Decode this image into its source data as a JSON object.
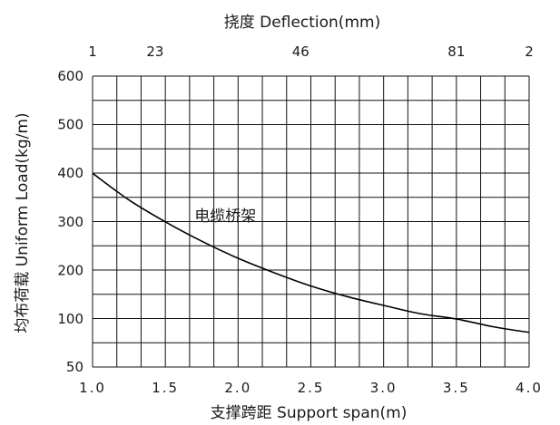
{
  "chart_data": {
    "type": "line",
    "title_top": "挠度 Deflection(mm)",
    "xlabel": "支撑跨距 Support span(m)",
    "ylabel": "均布荷载 Uniform Load(kg/m)",
    "x_ticks": [
      "1.0",
      "1.5",
      "2.0",
      "2.5",
      "3.0",
      "3.5",
      "4.0"
    ],
    "top_ticks": [
      {
        "label": "1",
        "x": 1.0
      },
      {
        "label": "23",
        "x": 1.43
      },
      {
        "label": "46",
        "x": 2.43
      },
      {
        "label": "81",
        "x": 3.5
      },
      {
        "label": "2",
        "x": 4.0
      }
    ],
    "y_ticks": [
      "50",
      "100",
      "200",
      "300",
      "400",
      "500",
      "600"
    ],
    "xlim": [
      1.0,
      4.0
    ],
    "y_scale": "piecewise: 50 at bottom, then linear 100–600",
    "grid": true,
    "series": [
      {
        "name": "电缆桥架",
        "x": [
          1.0,
          1.25,
          1.5,
          1.75,
          2.0,
          2.25,
          2.5,
          2.75,
          3.0,
          3.25,
          3.5,
          3.75,
          4.0
        ],
        "y": [
          400,
          345,
          300,
          260,
          225,
          195,
          168,
          146,
          128,
          111,
          100,
          92,
          86
        ]
      }
    ],
    "annotations": [
      {
        "text": "电缆桥架",
        "x": 1.7,
        "y": 290
      }
    ]
  }
}
